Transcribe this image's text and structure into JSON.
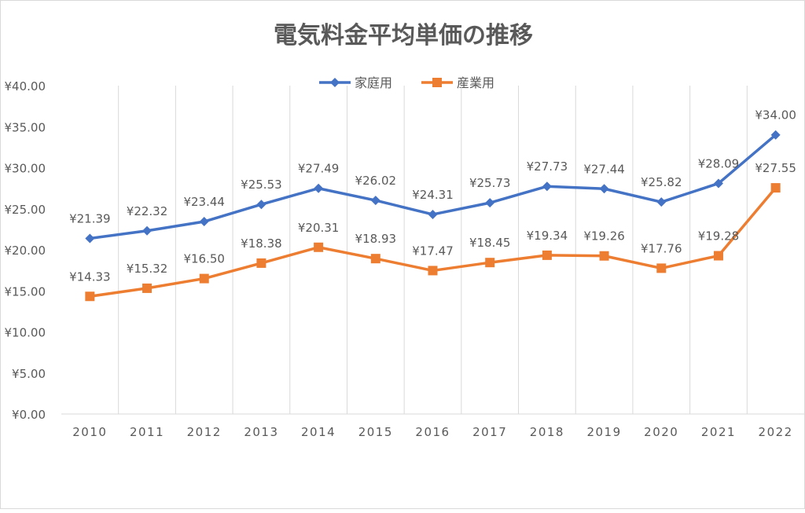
{
  "chart_data": {
    "type": "line",
    "title": "電気料金平均単価の推移",
    "xlabel": "",
    "ylabel": "",
    "categories": [
      "2010",
      "2011",
      "2012",
      "2013",
      "2014",
      "2015",
      "2016",
      "2017",
      "2018",
      "2019",
      "2020",
      "2021",
      "2022"
    ],
    "series": [
      {
        "name": "家庭用",
        "color": "#4472C4",
        "marker": "diamond",
        "values": [
          21.39,
          22.32,
          23.44,
          25.53,
          27.49,
          26.02,
          24.31,
          25.73,
          27.73,
          27.44,
          25.82,
          28.09,
          34.0
        ],
        "labels": [
          "¥21.39",
          "¥22.32",
          "¥23.44",
          "¥25.53",
          "¥27.49",
          "¥26.02",
          "¥24.31",
          "¥25.73",
          "¥27.73",
          "¥27.44",
          "¥25.82",
          "¥28.09",
          "¥34.00"
        ]
      },
      {
        "name": "産業用",
        "color": "#ED7D31",
        "marker": "square",
        "values": [
          14.33,
          15.32,
          16.5,
          18.38,
          20.31,
          18.93,
          17.47,
          18.45,
          19.34,
          19.26,
          17.76,
          19.28,
          27.55
        ],
        "labels": [
          "¥14.33",
          "¥15.32",
          "¥16.50",
          "¥18.38",
          "¥20.31",
          "¥18.93",
          "¥17.47",
          "¥18.45",
          "¥19.34",
          "¥19.26",
          "¥17.76",
          "¥19.28",
          "¥27.55"
        ]
      }
    ],
    "ylim": [
      0,
      40
    ],
    "yticks": [
      0,
      5,
      10,
      15,
      20,
      25,
      30,
      35,
      40
    ],
    "ytick_labels": [
      "¥0.00",
      "¥5.00",
      "¥10.00",
      "¥15.00",
      "¥20.00",
      "¥25.00",
      "¥30.00",
      "¥35.00",
      "¥40.00"
    ],
    "grid": "vertical",
    "legend": "top-center"
  }
}
